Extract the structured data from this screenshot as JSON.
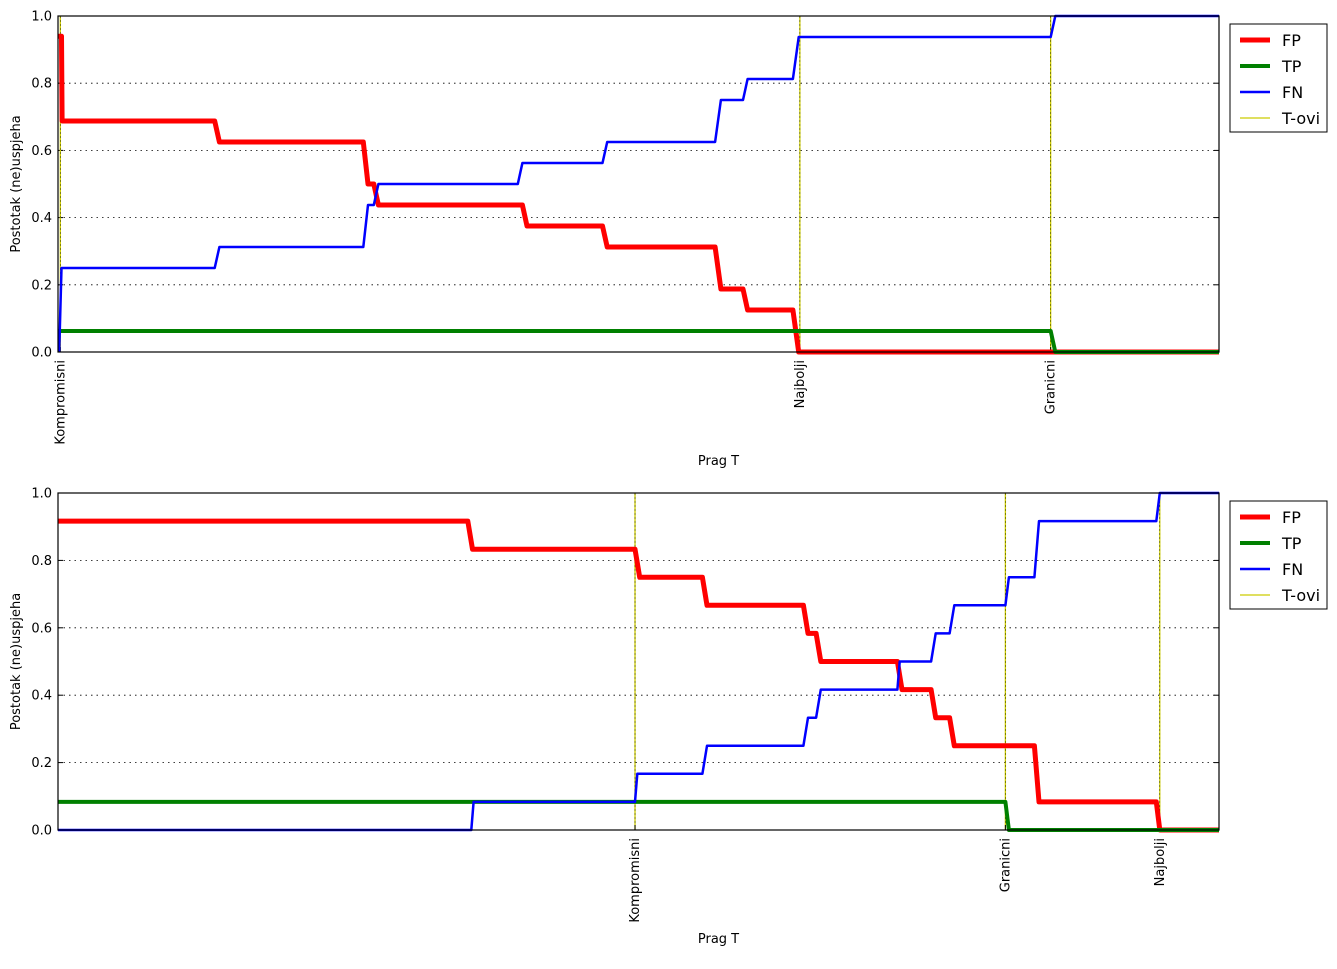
{
  "chart_data": [
    {
      "type": "line",
      "xlabel": "Prag T",
      "ylabel": "Postotak (ne)uspjeha",
      "xlim": [
        0,
        100
      ],
      "ylim": [
        0,
        1.0
      ],
      "yticks": [
        "0.0",
        "0.2",
        "0.4",
        "0.6",
        "0.8",
        "1.0"
      ],
      "ygrid": true,
      "legend_position": "outside-right-top",
      "thresholds": [
        {
          "x": 0.2,
          "label": "Kompromisni"
        },
        {
          "x": 63.9,
          "label": "Najbolji"
        },
        {
          "x": 85.5,
          "label": "Granicni"
        }
      ],
      "series": [
        {
          "name": "FP",
          "color": "#ff0000",
          "width": 5,
          "points": [
            [
              0,
              0.94
            ],
            [
              0.3,
              0.94
            ],
            [
              0.35,
              0.6875
            ],
            [
              13.5,
              0.6875
            ],
            [
              13.9,
              0.625
            ],
            [
              26.3,
              0.625
            ],
            [
              26.7,
              0.5
            ],
            [
              27.2,
              0.5
            ],
            [
              27.6,
              0.4375
            ],
            [
              40.0,
              0.4375
            ],
            [
              40.4,
              0.375
            ],
            [
              46.9,
              0.375
            ],
            [
              47.3,
              0.3125
            ],
            [
              56.6,
              0.3125
            ],
            [
              57.1,
              0.1875
            ],
            [
              59.0,
              0.1875
            ],
            [
              59.4,
              0.125
            ],
            [
              63.3,
              0.125
            ],
            [
              63.8,
              0.0
            ],
            [
              100,
              0.0
            ]
          ]
        },
        {
          "name": "TP",
          "color": "#008000",
          "width": 4,
          "points": [
            [
              0,
              0.0625
            ],
            [
              85.5,
              0.0625
            ],
            [
              85.9,
              0.0
            ],
            [
              100,
              0.0
            ]
          ]
        },
        {
          "name": "FN",
          "color": "#0000ff",
          "width": 2.5,
          "points": [
            [
              0.1,
              0.0
            ],
            [
              0.3,
              0.25
            ],
            [
              13.5,
              0.25
            ],
            [
              13.9,
              0.3125
            ],
            [
              26.3,
              0.3125
            ],
            [
              26.7,
              0.4375
            ],
            [
              27.2,
              0.4375
            ],
            [
              27.6,
              0.5
            ],
            [
              39.6,
              0.5
            ],
            [
              40.0,
              0.5625
            ],
            [
              46.9,
              0.5625
            ],
            [
              47.3,
              0.625
            ],
            [
              56.6,
              0.625
            ],
            [
              57.1,
              0.75
            ],
            [
              59.0,
              0.75
            ],
            [
              59.4,
              0.8125
            ],
            [
              63.3,
              0.8125
            ],
            [
              63.8,
              0.9375
            ],
            [
              85.5,
              0.9375
            ],
            [
              85.9,
              1.0
            ],
            [
              100,
              1.0
            ]
          ]
        }
      ],
      "legend": [
        "FP",
        "TP",
        "FN",
        "T-ovi"
      ]
    },
    {
      "type": "line",
      "xlabel": "Prag T",
      "ylabel": "Postotak (ne)uspjeha",
      "xlim": [
        0,
        100
      ],
      "ylim": [
        0,
        1.0
      ],
      "yticks": [
        "0.0",
        "0.2",
        "0.4",
        "0.6",
        "0.8",
        "1.0"
      ],
      "ygrid": true,
      "legend_position": "outside-right-top",
      "thresholds": [
        {
          "x": 49.7,
          "label": "Kompromisni"
        },
        {
          "x": 81.6,
          "label": "Granicni"
        },
        {
          "x": 94.9,
          "label": "Najbolji"
        }
      ],
      "series": [
        {
          "name": "FP",
          "color": "#ff0000",
          "width": 5,
          "points": [
            [
              0,
              0.9167
            ],
            [
              35.3,
              0.9167
            ],
            [
              35.7,
              0.8333
            ],
            [
              49.7,
              0.8333
            ],
            [
              50.1,
              0.75
            ],
            [
              55.5,
              0.75
            ],
            [
              55.9,
              0.6667
            ],
            [
              64.2,
              0.6667
            ],
            [
              64.6,
              0.5833
            ],
            [
              65.3,
              0.5833
            ],
            [
              65.7,
              0.5
            ],
            [
              72.3,
              0.5
            ],
            [
              72.7,
              0.4167
            ],
            [
              75.2,
              0.4167
            ],
            [
              75.6,
              0.3333
            ],
            [
              76.8,
              0.3333
            ],
            [
              77.2,
              0.25
            ],
            [
              84.1,
              0.25
            ],
            [
              84.5,
              0.0833
            ],
            [
              94.6,
              0.0833
            ],
            [
              94.9,
              0.0
            ],
            [
              100,
              0.0
            ]
          ]
        },
        {
          "name": "TP",
          "color": "#008000",
          "width": 4,
          "points": [
            [
              0,
              0.0833
            ],
            [
              81.6,
              0.0833
            ],
            [
              81.9,
              0.0
            ],
            [
              100,
              0.0
            ]
          ]
        },
        {
          "name": "FN",
          "color": "#0000ff",
          "width": 2.5,
          "points": [
            [
              0,
              0.0
            ],
            [
              35.6,
              0.0
            ],
            [
              35.8,
              0.0833
            ],
            [
              49.7,
              0.0833
            ],
            [
              49.9,
              0.1667
            ],
            [
              55.5,
              0.1667
            ],
            [
              55.9,
              0.25
            ],
            [
              64.2,
              0.25
            ],
            [
              64.6,
              0.3333
            ],
            [
              65.3,
              0.3333
            ],
            [
              65.7,
              0.4167
            ],
            [
              72.3,
              0.4167
            ],
            [
              72.5,
              0.5
            ],
            [
              75.2,
              0.5
            ],
            [
              75.6,
              0.5833
            ],
            [
              76.8,
              0.5833
            ],
            [
              77.2,
              0.6667
            ],
            [
              81.6,
              0.6667
            ],
            [
              81.9,
              0.75
            ],
            [
              84.1,
              0.75
            ],
            [
              84.5,
              0.9167
            ],
            [
              94.6,
              0.9167
            ],
            [
              94.9,
              1.0
            ],
            [
              100,
              1.0
            ]
          ]
        }
      ],
      "legend": [
        "FP",
        "TP",
        "FN",
        "T-ovi"
      ]
    }
  ]
}
